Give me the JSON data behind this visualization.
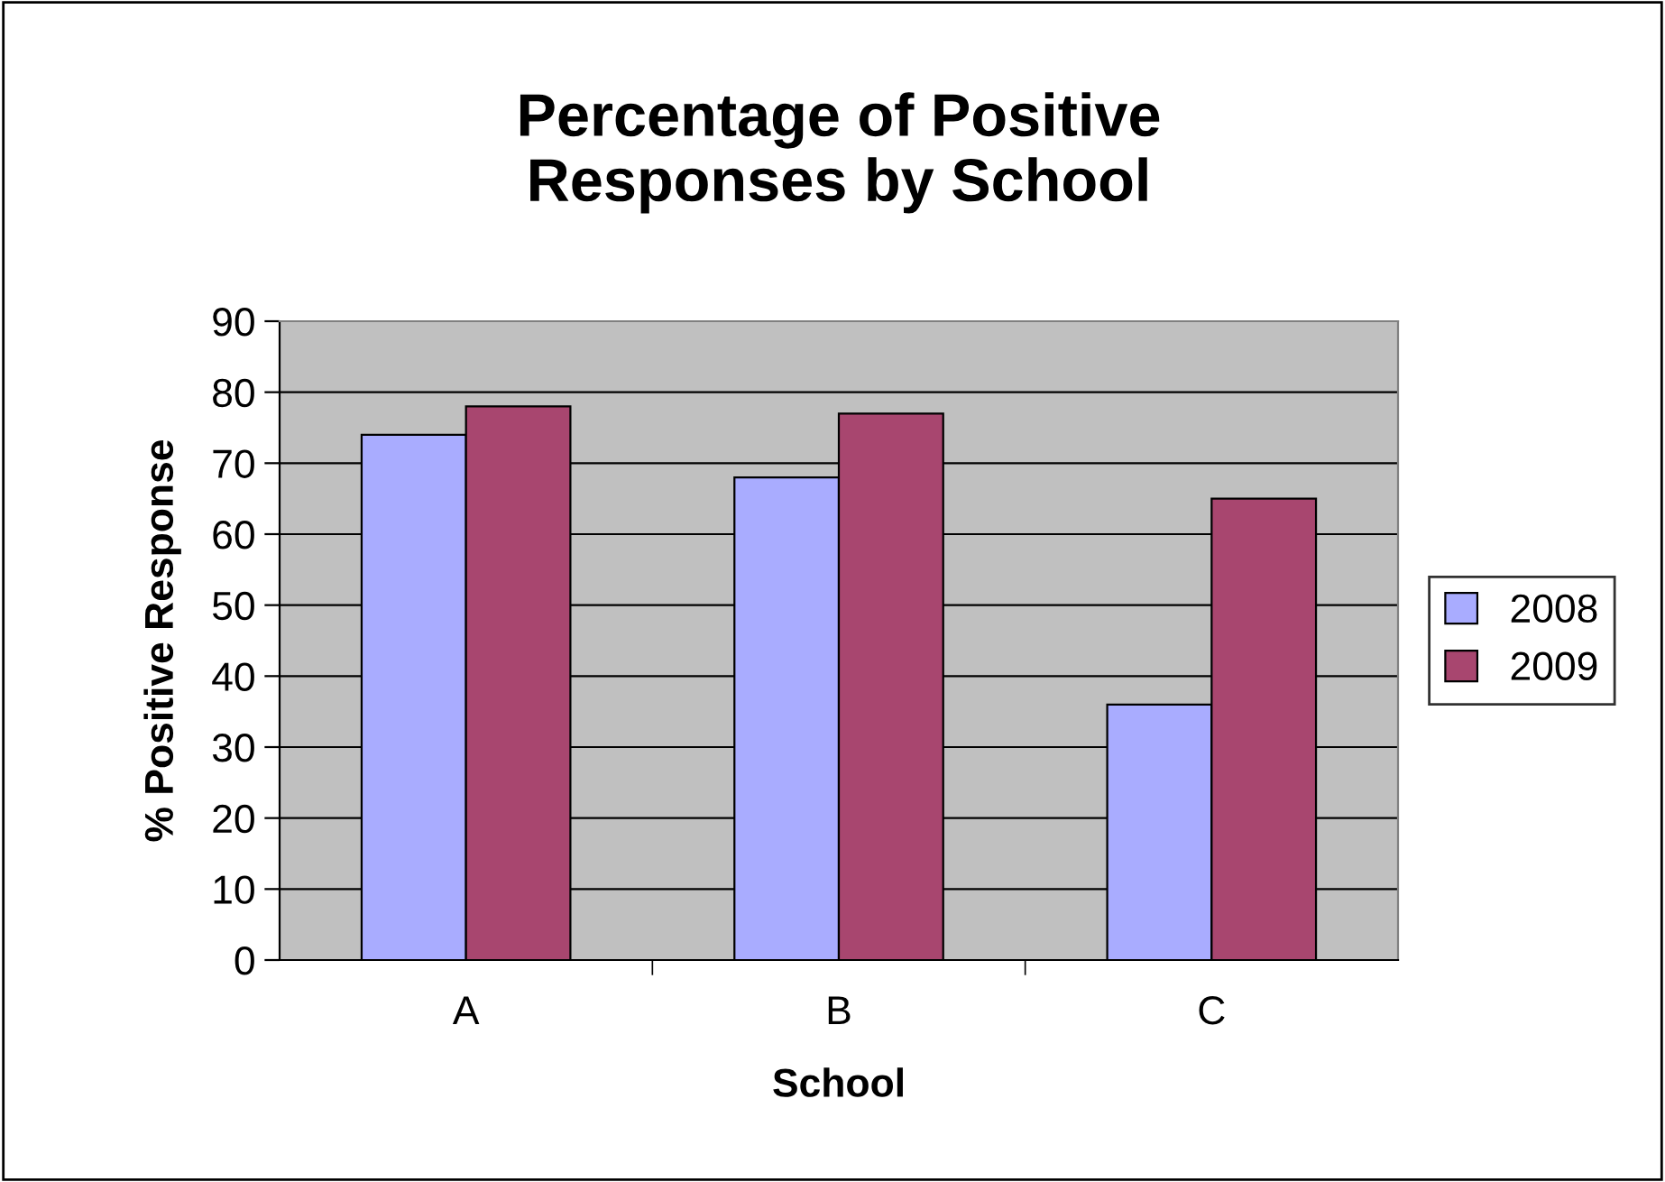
{
  "chart_data": {
    "type": "bar",
    "title": "Percentage of Positive\nResponses by School",
    "xlabel": "School",
    "ylabel": "% Positive Response",
    "categories": [
      "A",
      "B",
      "C"
    ],
    "series": [
      {
        "name": "2008",
        "color": "#a9acff",
        "values": [
          74,
          68,
          36
        ]
      },
      {
        "name": "2009",
        "color": "#a8466f",
        "values": [
          78,
          77,
          65
        ]
      }
    ],
    "ylim": [
      0,
      90
    ],
    "yticks": [
      0,
      10,
      20,
      30,
      40,
      50,
      60,
      70,
      80,
      90
    ],
    "grid": "y",
    "legend": "right"
  }
}
